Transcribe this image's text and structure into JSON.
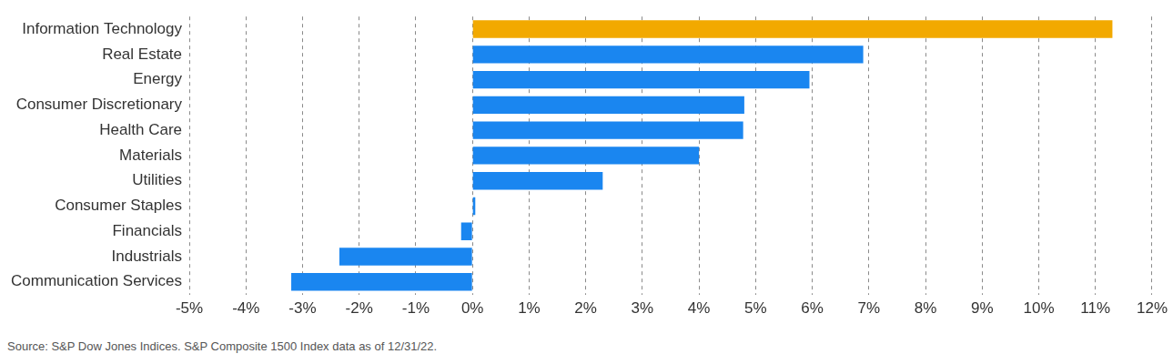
{
  "chart_data": {
    "type": "bar",
    "orientation": "horizontal",
    "categories": [
      "Information Technology",
      "Real Estate",
      "Energy",
      "Consumer Discretionary",
      "Health Care",
      "Materials",
      "Utilities",
      "Consumer Staples",
      "Financials",
      "Industrials",
      "Communication Services"
    ],
    "values": [
      11.3,
      6.9,
      5.95,
      4.8,
      4.78,
      4.0,
      2.3,
      0.05,
      -0.2,
      -2.35,
      -3.2
    ],
    "colors": [
      "#f2a900",
      "#1a86f0",
      "#1a86f0",
      "#1a86f0",
      "#1a86f0",
      "#1a86f0",
      "#1a86f0",
      "#1a86f0",
      "#1a86f0",
      "#1a86f0",
      "#1a86f0"
    ],
    "xlim": [
      -5,
      12
    ],
    "xticks": [
      {
        "value": -5,
        "label": "-5%"
      },
      {
        "value": -4,
        "label": "-4%"
      },
      {
        "value": -3,
        "label": "-3%"
      },
      {
        "value": -2,
        "label": "-2%"
      },
      {
        "value": -1,
        "label": "-1%"
      },
      {
        "value": 0,
        "label": "0%"
      },
      {
        "value": 1,
        "label": "1%"
      },
      {
        "value": 2,
        "label": "2%"
      },
      {
        "value": 3,
        "label": "3%"
      },
      {
        "value": 4,
        "label": "4%"
      },
      {
        "value": 5,
        "label": "5%"
      },
      {
        "value": 6,
        "label": "6%"
      },
      {
        "value": 7,
        "label": "7%"
      },
      {
        "value": 8,
        "label": "8%"
      },
      {
        "value": 9,
        "label": "9%"
      },
      {
        "value": 10,
        "label": "10%"
      },
      {
        "value": 11,
        "label": "11%"
      },
      {
        "value": 12,
        "label": "12%"
      }
    ],
    "grid": true,
    "annotations": [
      "Source: S&P Dow Jones Indices. S&P Composite 1500 Index data as of 12/31/22."
    ]
  }
}
